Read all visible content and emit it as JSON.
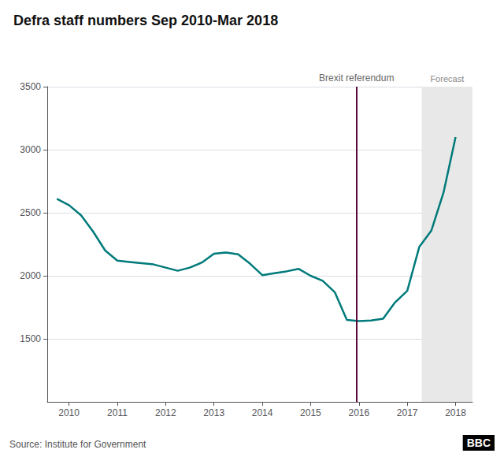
{
  "chart_data": {
    "type": "line",
    "title": "Defra staff numbers Sep 2010-Mar 2018",
    "source": "Source: Institute for Government",
    "logo": "BBC",
    "x": [
      2009.75,
      2010.0,
      2010.25,
      2010.5,
      2010.75,
      2011.0,
      2011.25,
      2011.5,
      2011.75,
      2012.0,
      2012.25,
      2012.5,
      2012.75,
      2013.0,
      2013.25,
      2013.5,
      2013.75,
      2014.0,
      2014.25,
      2014.5,
      2014.75,
      2015.0,
      2015.25,
      2015.5,
      2015.75,
      2016.0,
      2016.25,
      2016.5,
      2016.75,
      2017.0,
      2017.25,
      2017.5,
      2017.75,
      2018.0
    ],
    "values": [
      2610,
      2560,
      2480,
      2350,
      2200,
      2120,
      2110,
      2100,
      2090,
      2065,
      2040,
      2065,
      2105,
      2175,
      2185,
      2170,
      2095,
      2005,
      2020,
      2035,
      2055,
      2000,
      1960,
      1870,
      1650,
      1640,
      1645,
      1660,
      1790,
      1880,
      2230,
      2360,
      2660,
      3100
    ],
    "color": "#007a7a",
    "xlim": [
      2009.55,
      2018.35
    ],
    "xticks": [
      2010,
      2011,
      2012,
      2013,
      2014,
      2015,
      2016,
      2017,
      2018
    ],
    "ylim": [
      1000,
      3500
    ],
    "yticks": [
      1500,
      2000,
      2500,
      3000,
      3500
    ],
    "grid": true,
    "annotations": [
      {
        "type": "vline",
        "x": 2015.95,
        "label": "Brexit referendum",
        "color": "#5c0a3c"
      },
      {
        "type": "span",
        "x": [
          2017.3,
          2018.35
        ],
        "label": "Forecast",
        "color": "#e8e8e8"
      }
    ]
  }
}
